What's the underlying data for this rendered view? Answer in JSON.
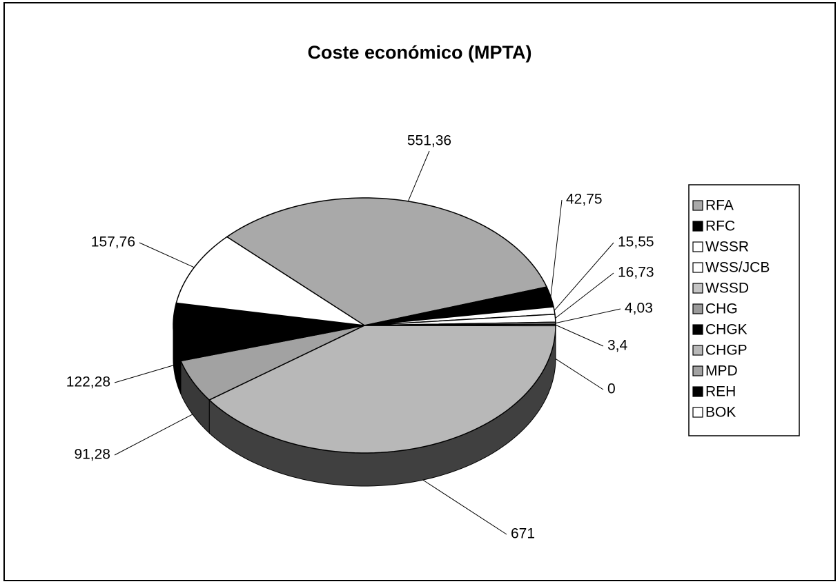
{
  "chart_data": {
    "type": "pie",
    "title": "Coste económico (MPTA)",
    "categories": [
      "RFA",
      "RFC",
      "WSSR",
      "WSS/JCB",
      "WSSD",
      "CHG",
      "CHGK",
      "CHGP",
      "MPD",
      "REH",
      "BOK"
    ],
    "values": [
      551.36,
      42.75,
      15.55,
      16.73,
      4.03,
      3.4,
      0,
      671,
      91.28,
      122.28,
      157.76
    ],
    "value_labels": [
      "551,36",
      "42,75",
      "15,55",
      "16,73",
      "4,03",
      "3,4",
      "0",
      "671",
      "91,28",
      "122,28",
      "157,76"
    ],
    "colors": [
      "#a9a9a9",
      "#000000",
      "#ffffff",
      "#ffffff",
      "#c4c4c4",
      "#9a9a9a",
      "#000000",
      "#b8b8b8",
      "#a2a2a2",
      "#000000",
      "#ffffff"
    ],
    "legend": "right"
  }
}
